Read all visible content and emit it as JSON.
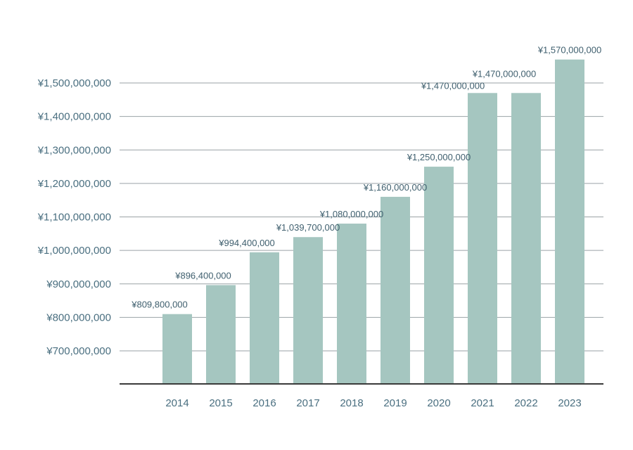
{
  "chart_data": {
    "type": "bar",
    "title": "",
    "xlabel": "",
    "ylabel": "",
    "categories": [
      "2014",
      "2015",
      "2016",
      "2017",
      "2018",
      "2019",
      "2020",
      "2021",
      "2022",
      "2023"
    ],
    "values": [
      809800000,
      896400000,
      994400000,
      1039700000,
      1080000000,
      1160000000,
      1250000000,
      1470000000,
      1470000000,
      1570000000
    ],
    "data_labels": [
      "¥809,800,000",
      "¥896,400,000",
      "¥994,400,000",
      "¥1,039,700,000",
      "¥1,080,000,000",
      "¥1,160,000,000",
      "¥1,250,000,000",
      "¥1,470,000,000",
      "¥1,470,000,000",
      "¥1,570,000,000"
    ],
    "ylim": [
      600000000,
      1600000000
    ],
    "yticks": [
      700000000,
      800000000,
      900000000,
      1000000000,
      1100000000,
      1200000000,
      1300000000,
      1400000000,
      1500000000
    ],
    "ytick_labels": [
      "¥700,000,000",
      "¥800,000,000",
      "¥900,000,000",
      "¥1,000,000,000",
      "¥1,100,000,000",
      "¥1,200,000,000",
      "¥1,300,000,000",
      "¥1,400,000,000",
      "¥1,500,000,000"
    ],
    "grid": true,
    "legend": "none",
    "colors": {
      "bar": "#a5c6c0",
      "text": "#4a6f80",
      "grid": "#9aa2a6",
      "axis": "#3a3a3a"
    }
  }
}
